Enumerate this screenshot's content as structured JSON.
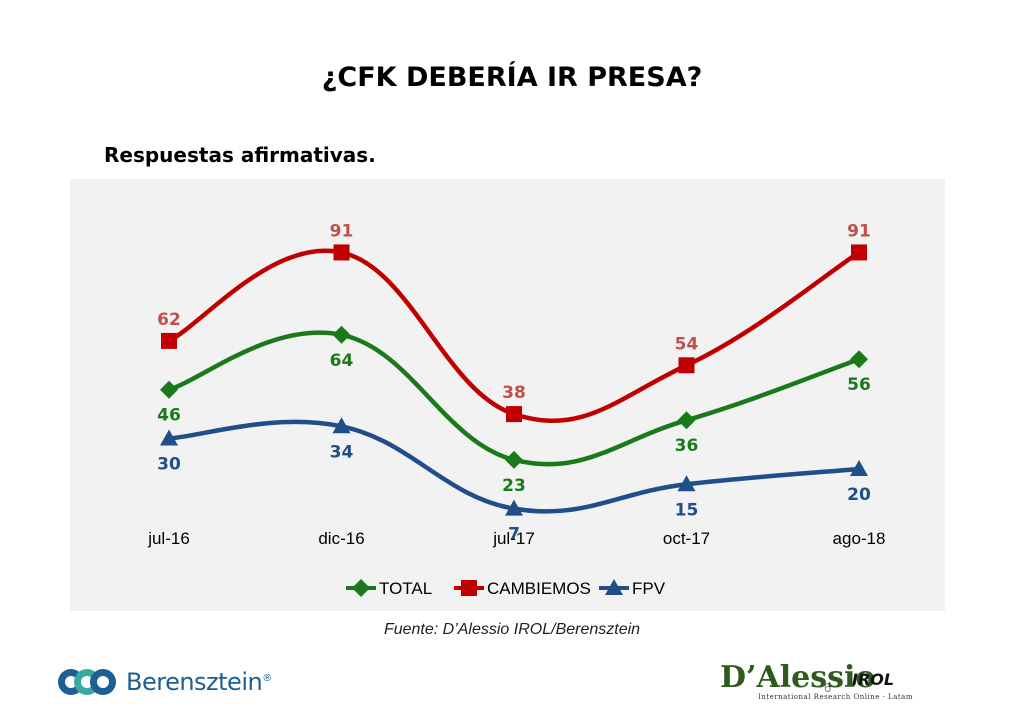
{
  "title": "¿CFK DEBERÍA IR PRESA?",
  "subtitle": "Respuestas afirmativas.",
  "source": "Fuente: D’Alessio IROL/Berensztein",
  "page_number": "6",
  "logos": {
    "left_name": "Berensztein",
    "left_reg": "®",
    "right_brand": "D’Alessio",
    "right_irol": "IROL",
    "right_tagline": "International Research Online · Latam"
  },
  "chart_data": {
    "type": "line",
    "categories": [
      "jul-16",
      "dic-16",
      "jul-17",
      "oct-17",
      "ago-18"
    ],
    "series": [
      {
        "name": "TOTAL",
        "values": [
          46,
          64,
          23,
          36,
          56
        ],
        "color": "#1a7a1a",
        "marker": "diamond"
      },
      {
        "name": "CAMBIEMOS",
        "values": [
          62,
          91,
          38,
          54,
          91
        ],
        "color": "#c00000",
        "marker": "square"
      },
      {
        "name": "FPV",
        "values": [
          30,
          34,
          7,
          15,
          20
        ],
        "color": "#1f4e8a",
        "marker": "triangle"
      }
    ],
    "label_colors": {
      "TOTAL": "#1a7a1a",
      "CAMBIEMOS": "#c0504d",
      "FPV": "#1f4e8a"
    },
    "ylim": [
      0,
      100
    ],
    "grid": false,
    "legend": "bottom",
    "smooth": true
  }
}
